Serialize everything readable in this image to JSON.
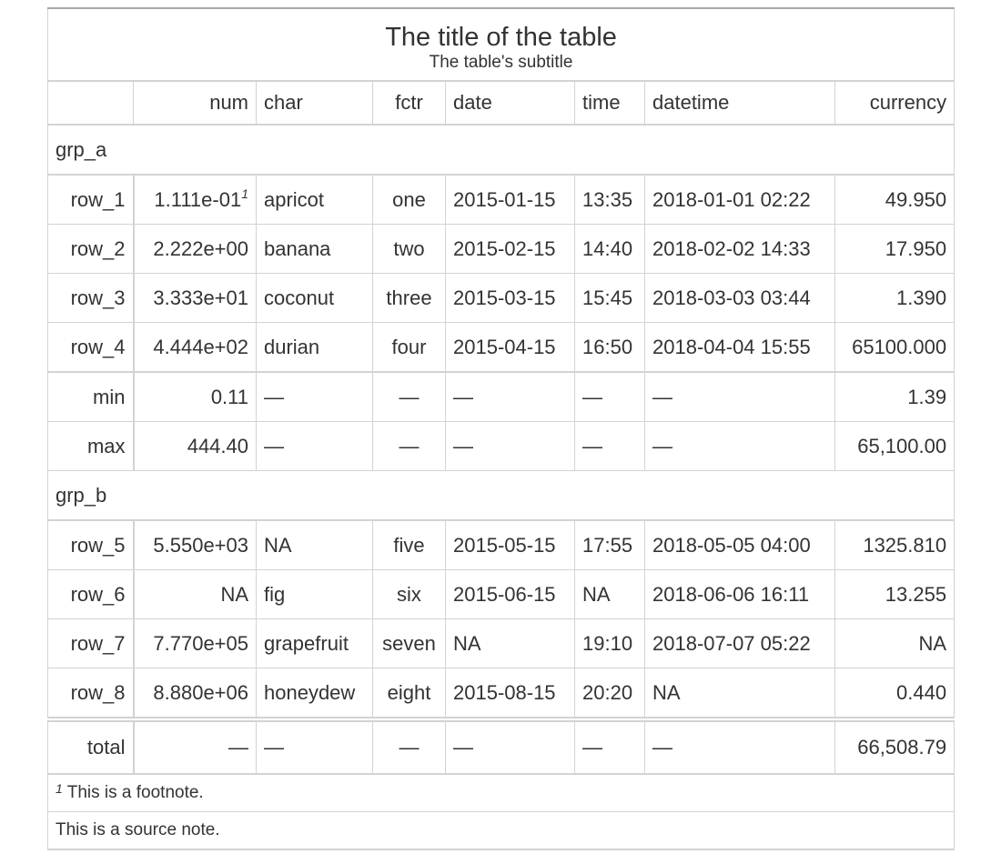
{
  "title": "The title of the table",
  "subtitle": "The table's subtitle",
  "columns": [
    {
      "label": "",
      "align": "r"
    },
    {
      "label": "num",
      "align": "r"
    },
    {
      "label": "char",
      "align": "l"
    },
    {
      "label": "fctr",
      "align": "c"
    },
    {
      "label": "date",
      "align": "l"
    },
    {
      "label": "time",
      "align": "l"
    },
    {
      "label": "datetime",
      "align": "l"
    },
    {
      "label": "currency",
      "align": "r"
    }
  ],
  "groups": [
    {
      "label": "grp_a",
      "rows": [
        {
          "stub": "row_1",
          "num": "1.111e-01",
          "num_mark": "1",
          "char": "apricot",
          "fctr": "one",
          "date": "2015-01-15",
          "time": "13:35",
          "datetime": "2018-01-01 02:22",
          "currency": "49.950"
        },
        {
          "stub": "row_2",
          "num": "2.222e+00",
          "char": "banana",
          "fctr": "two",
          "date": "2015-02-15",
          "time": "14:40",
          "datetime": "2018-02-02 14:33",
          "currency": "17.950"
        },
        {
          "stub": "row_3",
          "num": "3.333e+01",
          "char": "coconut",
          "fctr": "three",
          "date": "2015-03-15",
          "time": "15:45",
          "datetime": "2018-03-03 03:44",
          "currency": "1.390"
        },
        {
          "stub": "row_4",
          "num": "4.444e+02",
          "char": "durian",
          "fctr": "four",
          "date": "2015-04-15",
          "time": "16:50",
          "datetime": "2018-04-04 15:55",
          "currency": "65100.000"
        }
      ],
      "summaries": [
        {
          "stub": "min",
          "num": "0.11",
          "char": "—",
          "fctr": "—",
          "date": "—",
          "time": "—",
          "datetime": "—",
          "currency": "1.39"
        },
        {
          "stub": "max",
          "num": "444.40",
          "char": "—",
          "fctr": "—",
          "date": "—",
          "time": "—",
          "datetime": "—",
          "currency": "65,100.00"
        }
      ]
    },
    {
      "label": "grp_b",
      "rows": [
        {
          "stub": "row_5",
          "num": "5.550e+03",
          "char": "NA",
          "fctr": "five",
          "date": "2015-05-15",
          "time": "17:55",
          "datetime": "2018-05-05 04:00",
          "currency": "1325.810"
        },
        {
          "stub": "row_6",
          "num": "NA",
          "char": "fig",
          "fctr": "six",
          "date": "2015-06-15",
          "time": "NA",
          "datetime": "2018-06-06 16:11",
          "currency": "13.255"
        },
        {
          "stub": "row_7",
          "num": "7.770e+05",
          "char": "grapefruit",
          "fctr": "seven",
          "date": "NA",
          "time": "19:10",
          "datetime": "2018-07-07 05:22",
          "currency": "NA"
        },
        {
          "stub": "row_8",
          "num": "8.880e+06",
          "char": "honeydew",
          "fctr": "eight",
          "date": "2015-08-15",
          "time": "20:20",
          "datetime": "NA",
          "currency": "0.440"
        }
      ],
      "summaries": []
    }
  ],
  "grand_summary": {
    "stub": "total",
    "num": "—",
    "char": "—",
    "fctr": "—",
    "date": "—",
    "time": "—",
    "datetime": "—",
    "currency": "66,508.79"
  },
  "footnote": {
    "mark": "1",
    "text": "This is a footnote."
  },
  "source_note": "This is a source note."
}
